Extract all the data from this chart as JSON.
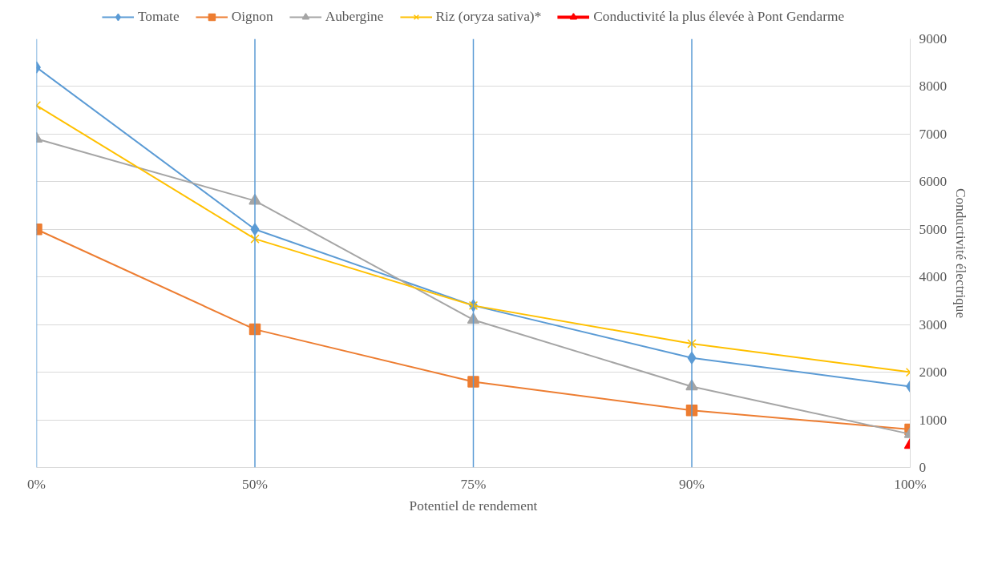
{
  "chart_data": {
    "type": "line",
    "xlabel": "Potentiel de rendement",
    "ylabel": "Conductivité électrique",
    "categories": [
      "0%",
      "50%",
      "75%",
      "90%",
      "100%"
    ],
    "ylim": [
      0,
      9000
    ],
    "yticks": [
      0,
      1000,
      2000,
      3000,
      4000,
      5000,
      6000,
      7000,
      8000,
      9000
    ],
    "grid": "y",
    "legend": "top",
    "ref_lines": [
      {
        "axis": "x",
        "value": "0%",
        "color": "#5b9bd5"
      },
      {
        "axis": "x",
        "value": "50%",
        "color": "#5b9bd5"
      },
      {
        "axis": "x",
        "value": "75%",
        "color": "#5b9bd5"
      },
      {
        "axis": "x",
        "value": "90%",
        "color": "#5b9bd5"
      }
    ],
    "series": [
      {
        "name": "Tomate",
        "color": "#5b9bd5",
        "marker": "diamond",
        "values": [
          8400,
          5000,
          3400,
          2300,
          1700
        ]
      },
      {
        "name": "Oignon",
        "color": "#ed7d31",
        "marker": "square",
        "values": [
          5000,
          2900,
          1800,
          1200,
          800
        ]
      },
      {
        "name": "Aubergine",
        "color": "#a5a5a5",
        "marker": "triangle",
        "values": [
          6900,
          5600,
          3100,
          1700,
          700
        ]
      },
      {
        "name": "Riz (oryza sativa)*",
        "color": "#ffc000",
        "marker": "cross",
        "values": [
          7600,
          4800,
          3400,
          2600,
          2000
        ]
      },
      {
        "name": "Conductivité la plus élevée à Pont Gendarme",
        "color": "#ff0000",
        "marker": "triangle",
        "values": [
          null,
          null,
          null,
          null,
          470
        ]
      }
    ]
  }
}
